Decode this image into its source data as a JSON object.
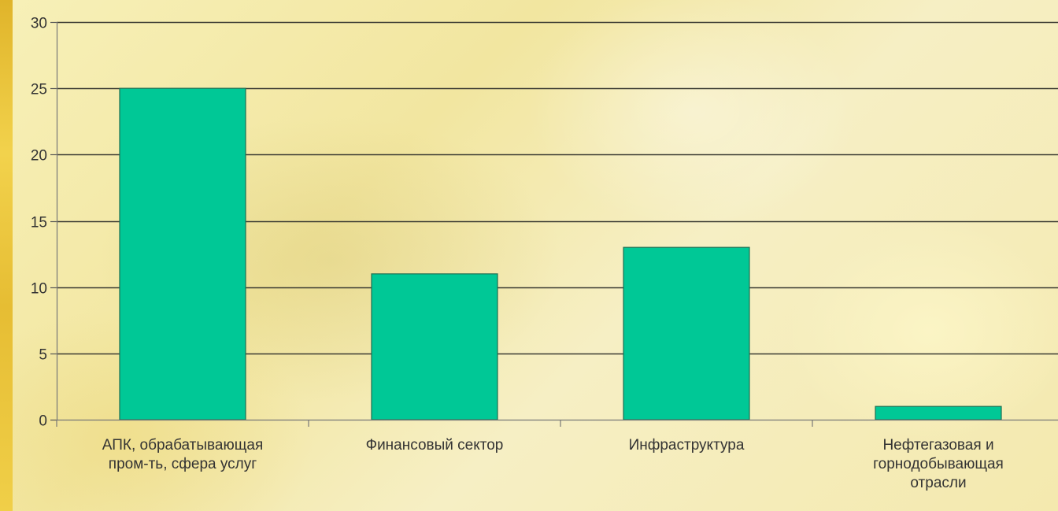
{
  "chart_data": {
    "type": "bar",
    "categories": [
      [
        "АПК, обрабатывающая",
        "пром-ть, сфера услуг"
      ],
      [
        "Финансовый сектор"
      ],
      [
        "Инфраструктура"
      ],
      [
        "Нефтегазовая и",
        "горнодобывающая",
        "отрасли"
      ]
    ],
    "values": [
      25,
      11,
      13,
      1
    ],
    "yticks": [
      0,
      5,
      10,
      15,
      20,
      25,
      30
    ],
    "ylim": [
      0,
      30
    ],
    "grid": true,
    "bar_color": "#00c896",
    "bar_edge_color": "#1f6f52",
    "title": "",
    "xlabel": "",
    "ylabel": ""
  }
}
